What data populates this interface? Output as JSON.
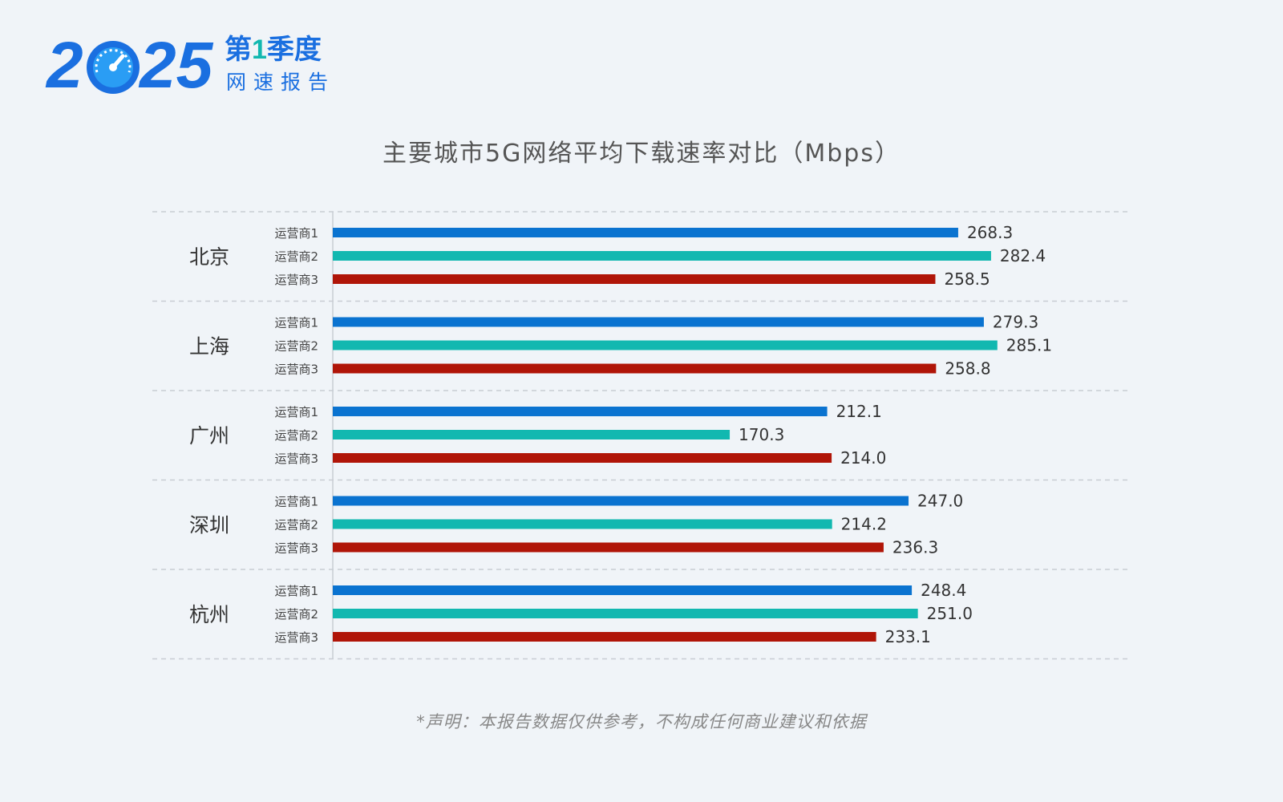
{
  "logo": {
    "year_left": "2",
    "year_right": "25",
    "quarter_prefix": "第",
    "quarter_number": "1",
    "quarter_suffix": "季度",
    "subtitle": "网速报告",
    "gauge_icon": "speedometer-icon"
  },
  "disclaimer": "*声明：本报告数据仅供参考，不构成任何商业建议和依据",
  "colors": {
    "background": "#f0f4f8",
    "brand_blue": "#1a6fe0",
    "series": [
      "#0a73d0",
      "#12b8b0",
      "#b01508"
    ]
  },
  "chart_data": {
    "type": "bar",
    "orientation": "horizontal",
    "title": "主要城市5G网络平均下载速率对比（Mbps）",
    "groups": [
      "北京",
      "上海",
      "广州",
      "深圳",
      "杭州"
    ],
    "series": [
      {
        "name": "运营商1",
        "values": [
          268.3,
          279.3,
          212.1,
          247.0,
          248.4
        ]
      },
      {
        "name": "运营商2",
        "values": [
          282.4,
          285.1,
          170.3,
          214.2,
          251.0
        ]
      },
      {
        "name": "运营商3",
        "values": [
          258.5,
          258.8,
          214.0,
          236.3,
          233.1
        ]
      }
    ],
    "value_labels": [
      [
        "268.3",
        "282.4",
        "258.5"
      ],
      [
        "279.3",
        "285.1",
        "258.8"
      ],
      [
        "212.1",
        "170.3",
        "214.0"
      ],
      [
        "247.0",
        "214.2",
        "236.3"
      ],
      [
        "248.4",
        "251.0",
        "233.1"
      ]
    ],
    "xlim": [
      0,
      300
    ],
    "grid": "dashed separators between groups",
    "legend": "none",
    "unit": "Mbps"
  }
}
